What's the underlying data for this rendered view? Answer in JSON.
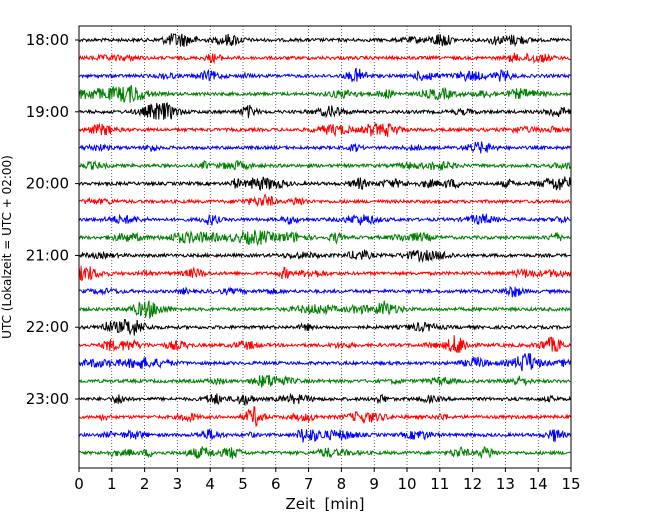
{
  "chart_data": {
    "type": "line",
    "chart_kind": "helicorder",
    "xlabel": "Zeit  [min]",
    "ylabel": "UTC (Lokalzeit = UTC + 02:00)",
    "xlim": [
      0,
      15
    ],
    "x_ticks": [
      "0",
      "1",
      "2",
      "3",
      "4",
      "5",
      "6",
      "7",
      "8",
      "9",
      "10",
      "11",
      "12",
      "13",
      "14",
      "15"
    ],
    "y_ticks": [
      "18:00",
      "19:00",
      "20:00",
      "21:00",
      "22:00",
      "23:00"
    ],
    "trace_interval_min": 15,
    "trace_count": 24,
    "start_time": "18:00",
    "trace_color_cycle": [
      "#000000",
      "#ff0000",
      "#0000ff",
      "#008000"
    ],
    "grid": "vertical dotted lines at each minute"
  }
}
